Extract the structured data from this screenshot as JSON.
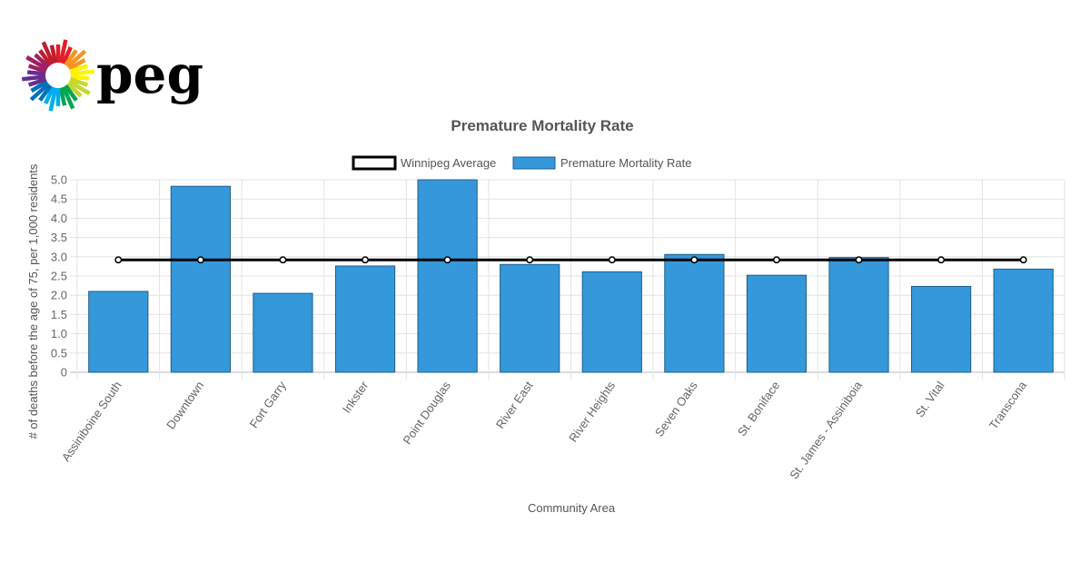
{
  "logo": {
    "text": "peg",
    "colors": [
      "#e31e24",
      "#f7941d",
      "#fff200",
      "#c5d82e",
      "#00a651",
      "#00aeef",
      "#0072bc",
      "#662d91",
      "#9e1f63",
      "#be1e2d"
    ]
  },
  "chart_data": {
    "type": "bar",
    "title": "Premature Mortality Rate",
    "xlabel": "Community Area",
    "ylabel": "# of deaths before the age of 75, per 1,000 residents",
    "ylim": [
      0,
      5.0
    ],
    "yticks": [
      "0",
      "0.5",
      "1.0",
      "1.5",
      "2.0",
      "2.5",
      "3.0",
      "3.5",
      "4.0",
      "4.5",
      "5.0"
    ],
    "grid": true,
    "legend_position": "top",
    "categories": [
      "Assiniboine South",
      "Downtown",
      "Fort Garry",
      "Inkster",
      "Point Douglas",
      "River East",
      "River Heights",
      "Seven Oaks",
      "St. Boniface",
      "St. James - Assiniboia",
      "St. Vital",
      "Transcona"
    ],
    "series": [
      {
        "name": "Winnipeg Average",
        "type": "line",
        "color": "#000000",
        "values": [
          2.92,
          2.92,
          2.92,
          2.92,
          2.92,
          2.92,
          2.92,
          2.92,
          2.92,
          2.92,
          2.92,
          2.92
        ]
      },
      {
        "name": "Premature Mortality Rate",
        "type": "bar",
        "color": "#3498db",
        "values": [
          2.1,
          4.83,
          2.05,
          2.76,
          5.0,
          2.8,
          2.61,
          3.06,
          2.52,
          2.98,
          2.23,
          2.68
        ]
      }
    ]
  }
}
